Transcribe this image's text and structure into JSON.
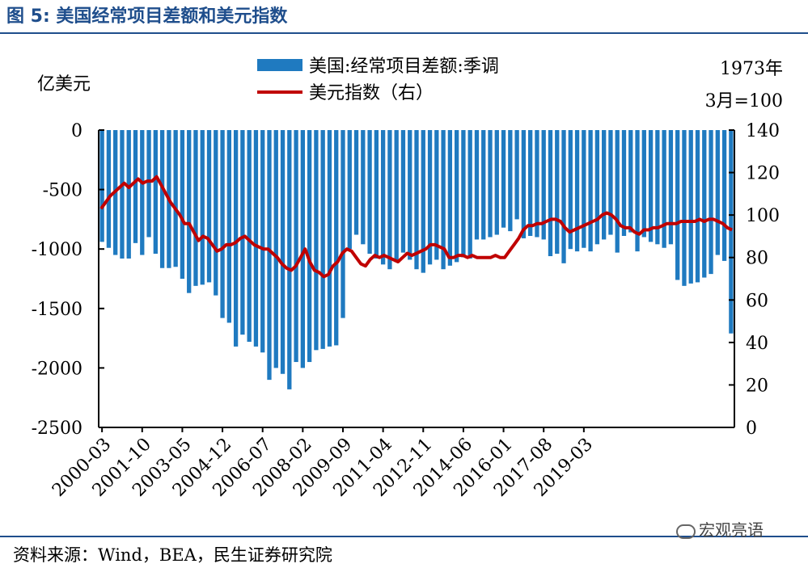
{
  "figure_title": "图 5:  美国经常项目差额和美元指数",
  "source": "资料来源：Wind，BEA，民生证券研究院",
  "watermark": "宏观亮语",
  "colors": {
    "bar": "#1f7ac0",
    "line": "#c00000",
    "title": "#1f4e8c"
  },
  "chart_data": {
    "type": "bar+line",
    "left_axis_unit": "亿美元",
    "right_axis_unit": [
      "1973年",
      "3月=100"
    ],
    "y_left": {
      "min": -2500,
      "max": 0,
      "ticks": [
        "0",
        "-500",
        "-1000",
        "-1500",
        "-2000",
        "-2500"
      ]
    },
    "y_right": {
      "min": 0,
      "max": 140,
      "ticks": [
        "140",
        "120",
        "100",
        "80",
        "60",
        "40",
        "20",
        "0"
      ]
    },
    "x_tick_labels": [
      "2000-03",
      "2001-10",
      "2003-05",
      "2004-12",
      "2006-07",
      "2008-02",
      "2009-09",
      "2011-04",
      "2012-11",
      "2014-06",
      "2016-01",
      "2017-08",
      "2019-03"
    ],
    "x_tick_every": 6,
    "legend_position": "top",
    "series": [
      {
        "name": "美国:经常项目差额:季调",
        "type": "bar",
        "axis": "left",
        "values": [
          -940,
          -990,
          -1050,
          -1080,
          -1080,
          -950,
          -1050,
          -900,
          -1040,
          -1160,
          -1160,
          -1150,
          -1250,
          -1370,
          -1310,
          -1300,
          -1280,
          -1390,
          -1580,
          -1620,
          -1820,
          -1720,
          -1780,
          -1820,
          -1870,
          -2100,
          -2000,
          -2050,
          -2180,
          -1950,
          -2000,
          -1950,
          -1850,
          -1840,
          -1820,
          -1810,
          -1580,
          -1000,
          -880,
          -960,
          -1040,
          -1080,
          -1130,
          -1170,
          -1110,
          -1030,
          -1090,
          -1170,
          -1200,
          -1130,
          -1090,
          -1170,
          -1140,
          -1110,
          -1070,
          -1080,
          -920,
          -920,
          -900,
          -880,
          -820,
          -850,
          -750,
          -910,
          -890,
          -900,
          -920,
          -1060,
          -1040,
          -1120,
          -1000,
          -1020,
          -990,
          -1020,
          -960,
          -920,
          -880,
          -1030,
          -890,
          -860,
          -1020,
          -900,
          -940,
          -960,
          -990,
          -960,
          -1260,
          -1310,
          -1290,
          -1280,
          -1240,
          -1210,
          -1050,
          -1100,
          -1710
        ]
      },
      {
        "name": "美元指数（右）",
        "type": "line",
        "axis": "right",
        "values": [
          103,
          106,
          109,
          111,
          113,
          115,
          113,
          115,
          117,
          115,
          116,
          116,
          118,
          114,
          110,
          106,
          103,
          100,
          96,
          96,
          92,
          88,
          90,
          89,
          86,
          83,
          84,
          86,
          86,
          87,
          89,
          90,
          88,
          86,
          85,
          84,
          84,
          82,
          80,
          77,
          75,
          74,
          76,
          80,
          84,
          78,
          74,
          73,
          71,
          72,
          76,
          78,
          82,
          84,
          83,
          80,
          77,
          76,
          79,
          81,
          80,
          81,
          80,
          79,
          78,
          80,
          82,
          81,
          82,
          83,
          84,
          86,
          86,
          85,
          84,
          80,
          80,
          81,
          81,
          80,
          81,
          80,
          80,
          80,
          80,
          81,
          80,
          80,
          83,
          86,
          89,
          93,
          95,
          95,
          96,
          96,
          97,
          98,
          98,
          97,
          94,
          92,
          93,
          94,
          95,
          96,
          97,
          98,
          100,
          101,
          100,
          98,
          95,
          94,
          94,
          92,
          91,
          93,
          93,
          94,
          94,
          95,
          96,
          96,
          96,
          97,
          97,
          97,
          97,
          98,
          97,
          98,
          98,
          97,
          96,
          94,
          93
        ]
      }
    ]
  }
}
